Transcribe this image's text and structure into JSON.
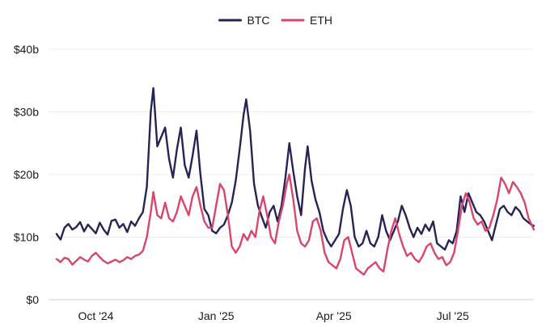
{
  "chart_data": {
    "type": "line",
    "title": "",
    "xlabel": "",
    "ylabel": "",
    "y_unit_prefix": "$",
    "y_unit_suffix": "b",
    "ylim": [
      0,
      40
    ],
    "y_ticks": [
      0,
      10,
      20,
      30,
      40
    ],
    "y_tick_labels": [
      "$0",
      "$10b",
      "$20b",
      "$30b",
      "$40b"
    ],
    "xlim": [
      "2024-09-01",
      "2025-09-01"
    ],
    "x_ticks": [
      {
        "date": "2024-10-01",
        "label": "Oct '24"
      },
      {
        "date": "2025-01-01",
        "label": "Jan '25"
      },
      {
        "date": "2025-04-01",
        "label": "Apr '25"
      },
      {
        "date": "2025-07-01",
        "label": "Jul '25"
      }
    ],
    "grid": "horizontal",
    "legend_position": "top-center",
    "series": [
      {
        "name": "BTC",
        "color": "#262456",
        "points": [
          [
            "2024-09-01",
            10.5
          ],
          [
            "2024-09-04",
            9.6
          ],
          [
            "2024-09-07",
            11.5
          ],
          [
            "2024-09-10",
            12.1
          ],
          [
            "2024-09-13",
            11.2
          ],
          [
            "2024-09-16",
            11.6
          ],
          [
            "2024-09-19",
            12.4
          ],
          [
            "2024-09-22",
            10.9
          ],
          [
            "2024-09-25",
            12.0
          ],
          [
            "2024-09-28",
            11.3
          ],
          [
            "2024-10-01",
            10.6
          ],
          [
            "2024-10-04",
            12.3
          ],
          [
            "2024-10-07",
            11.2
          ],
          [
            "2024-10-10",
            10.4
          ],
          [
            "2024-10-13",
            12.6
          ],
          [
            "2024-10-16",
            12.8
          ],
          [
            "2024-10-19",
            11.5
          ],
          [
            "2024-10-22",
            12.1
          ],
          [
            "2024-10-25",
            10.8
          ],
          [
            "2024-10-28",
            12.5
          ],
          [
            "2024-10-31",
            11.8
          ],
          [
            "2024-11-03",
            13.0
          ],
          [
            "2024-11-06",
            14.0
          ],
          [
            "2024-11-09",
            18.0
          ],
          [
            "2024-11-12",
            30.0
          ],
          [
            "2024-11-14",
            33.8
          ],
          [
            "2024-11-17",
            24.5
          ],
          [
            "2024-11-20",
            26.0
          ],
          [
            "2024-11-23",
            27.5
          ],
          [
            "2024-11-26",
            22.5
          ],
          [
            "2024-11-29",
            19.5
          ],
          [
            "2024-12-02",
            24.0
          ],
          [
            "2024-12-05",
            27.5
          ],
          [
            "2024-12-08",
            21.5
          ],
          [
            "2024-12-11",
            19.5
          ],
          [
            "2024-12-14",
            23.0
          ],
          [
            "2024-12-17",
            27.0
          ],
          [
            "2024-12-20",
            20.0
          ],
          [
            "2024-12-23",
            14.5
          ],
          [
            "2024-12-26",
            13.5
          ],
          [
            "2024-12-29",
            11.0
          ],
          [
            "2025-01-01",
            10.6
          ],
          [
            "2025-01-04",
            11.5
          ],
          [
            "2025-01-07",
            12.0
          ],
          [
            "2025-01-10",
            13.5
          ],
          [
            "2025-01-13",
            15.5
          ],
          [
            "2025-01-16",
            19.0
          ],
          [
            "2025-01-19",
            24.0
          ],
          [
            "2025-01-22",
            29.5
          ],
          [
            "2025-01-24",
            32.0
          ],
          [
            "2025-01-27",
            27.0
          ],
          [
            "2025-01-30",
            18.5
          ],
          [
            "2025-02-02",
            15.0
          ],
          [
            "2025-02-05",
            13.2
          ],
          [
            "2025-02-08",
            11.5
          ],
          [
            "2025-02-11",
            14.0
          ],
          [
            "2025-02-14",
            15.0
          ],
          [
            "2025-02-17",
            12.5
          ],
          [
            "2025-02-20",
            15.0
          ],
          [
            "2025-02-23",
            19.5
          ],
          [
            "2025-02-26",
            25.0
          ],
          [
            "2025-03-01",
            20.5
          ],
          [
            "2025-03-04",
            16.5
          ],
          [
            "2025-03-07",
            13.5
          ],
          [
            "2025-03-10",
            21.0
          ],
          [
            "2025-03-12",
            24.5
          ],
          [
            "2025-03-15",
            19.0
          ],
          [
            "2025-03-18",
            16.0
          ],
          [
            "2025-03-21",
            14.0
          ],
          [
            "2025-03-24",
            11.0
          ],
          [
            "2025-03-27",
            9.5
          ],
          [
            "2025-03-30",
            8.5
          ],
          [
            "2025-04-02",
            9.5
          ],
          [
            "2025-04-05",
            10.5
          ],
          [
            "2025-04-08",
            14.5
          ],
          [
            "2025-04-11",
            17.5
          ],
          [
            "2025-04-14",
            15.0
          ],
          [
            "2025-04-17",
            10.0
          ],
          [
            "2025-04-20",
            8.5
          ],
          [
            "2025-04-23",
            9.0
          ],
          [
            "2025-04-26",
            11.0
          ],
          [
            "2025-04-29",
            9.0
          ],
          [
            "2025-05-02",
            8.5
          ],
          [
            "2025-05-05",
            10.0
          ],
          [
            "2025-05-08",
            13.5
          ],
          [
            "2025-05-11",
            11.0
          ],
          [
            "2025-05-14",
            9.5
          ],
          [
            "2025-05-17",
            11.0
          ],
          [
            "2025-05-20",
            12.5
          ],
          [
            "2025-05-23",
            15.0
          ],
          [
            "2025-05-26",
            13.5
          ],
          [
            "2025-05-29",
            11.5
          ],
          [
            "2025-06-01",
            10.0
          ],
          [
            "2025-06-04",
            11.5
          ],
          [
            "2025-06-07",
            10.5
          ],
          [
            "2025-06-10",
            12.0
          ],
          [
            "2025-06-13",
            11.0
          ],
          [
            "2025-06-16",
            12.5
          ],
          [
            "2025-06-19",
            9.0
          ],
          [
            "2025-06-22",
            8.5
          ],
          [
            "2025-06-25",
            8.0
          ],
          [
            "2025-06-28",
            9.5
          ],
          [
            "2025-07-01",
            9.0
          ],
          [
            "2025-07-04",
            11.0
          ],
          [
            "2025-07-07",
            16.5
          ],
          [
            "2025-07-10",
            14.0
          ],
          [
            "2025-07-13",
            17.0
          ],
          [
            "2025-07-16",
            15.5
          ],
          [
            "2025-07-19",
            14.0
          ],
          [
            "2025-07-22",
            13.5
          ],
          [
            "2025-07-25",
            12.5
          ],
          [
            "2025-07-28",
            11.0
          ],
          [
            "2025-07-31",
            9.5
          ],
          [
            "2025-08-03",
            12.0
          ],
          [
            "2025-08-06",
            14.5
          ],
          [
            "2025-08-09",
            15.0
          ],
          [
            "2025-08-12",
            14.0
          ],
          [
            "2025-08-15",
            13.5
          ],
          [
            "2025-08-18",
            14.8
          ],
          [
            "2025-08-21",
            14.2
          ],
          [
            "2025-08-24",
            13.0
          ],
          [
            "2025-08-27",
            12.5
          ],
          [
            "2025-08-30",
            12.0
          ],
          [
            "2025-09-01",
            11.8
          ]
        ]
      },
      {
        "name": "ETH",
        "color": "#d9466b",
        "points": [
          [
            "2024-09-01",
            6.5
          ],
          [
            "2024-09-04",
            6.0
          ],
          [
            "2024-09-07",
            6.7
          ],
          [
            "2024-09-10",
            6.5
          ],
          [
            "2024-09-13",
            5.6
          ],
          [
            "2024-09-16",
            6.2
          ],
          [
            "2024-09-19",
            6.8
          ],
          [
            "2024-09-22",
            6.4
          ],
          [
            "2024-09-25",
            6.1
          ],
          [
            "2024-09-28",
            7.0
          ],
          [
            "2024-10-01",
            7.5
          ],
          [
            "2024-10-04",
            6.8
          ],
          [
            "2024-10-07",
            6.2
          ],
          [
            "2024-10-10",
            5.8
          ],
          [
            "2024-10-13",
            6.1
          ],
          [
            "2024-10-16",
            6.4
          ],
          [
            "2024-10-19",
            6.0
          ],
          [
            "2024-10-22",
            6.3
          ],
          [
            "2024-10-25",
            6.8
          ],
          [
            "2024-10-28",
            6.5
          ],
          [
            "2024-10-31",
            7.0
          ],
          [
            "2024-11-03",
            7.2
          ],
          [
            "2024-11-06",
            7.8
          ],
          [
            "2024-11-09",
            10.0
          ],
          [
            "2024-11-12",
            14.0
          ],
          [
            "2024-11-14",
            17.2
          ],
          [
            "2024-11-17",
            13.5
          ],
          [
            "2024-11-20",
            13.0
          ],
          [
            "2024-11-23",
            15.5
          ],
          [
            "2024-11-26",
            13.0
          ],
          [
            "2024-11-29",
            12.5
          ],
          [
            "2024-12-02",
            14.0
          ],
          [
            "2024-12-05",
            16.5
          ],
          [
            "2024-12-08",
            15.0
          ],
          [
            "2024-12-11",
            13.5
          ],
          [
            "2024-12-14",
            16.5
          ],
          [
            "2024-12-17",
            18.0
          ],
          [
            "2024-12-20",
            15.0
          ],
          [
            "2024-12-23",
            12.5
          ],
          [
            "2024-12-26",
            11.5
          ],
          [
            "2024-12-29",
            11.5
          ],
          [
            "2025-01-01",
            15.0
          ],
          [
            "2025-01-04",
            18.5
          ],
          [
            "2025-01-07",
            17.5
          ],
          [
            "2025-01-10",
            13.5
          ],
          [
            "2025-01-13",
            8.5
          ],
          [
            "2025-01-16",
            7.5
          ],
          [
            "2025-01-19",
            8.5
          ],
          [
            "2025-01-22",
            10.5
          ],
          [
            "2025-01-25",
            9.5
          ],
          [
            "2025-01-28",
            11.0
          ],
          [
            "2025-01-31",
            10.0
          ],
          [
            "2025-02-03",
            14.0
          ],
          [
            "2025-02-06",
            16.5
          ],
          [
            "2025-02-09",
            13.5
          ],
          [
            "2025-02-12",
            10.0
          ],
          [
            "2025-02-15",
            9.0
          ],
          [
            "2025-02-18",
            12.5
          ],
          [
            "2025-02-21",
            15.0
          ],
          [
            "2025-02-24",
            18.5
          ],
          [
            "2025-02-26",
            20.0
          ],
          [
            "2025-03-01",
            16.0
          ],
          [
            "2025-03-04",
            11.0
          ],
          [
            "2025-03-07",
            9.0
          ],
          [
            "2025-03-10",
            8.5
          ],
          [
            "2025-03-13",
            9.5
          ],
          [
            "2025-03-16",
            12.5
          ],
          [
            "2025-03-19",
            13.0
          ],
          [
            "2025-03-22",
            11.0
          ],
          [
            "2025-03-25",
            7.5
          ],
          [
            "2025-03-28",
            6.0
          ],
          [
            "2025-03-31",
            5.5
          ],
          [
            "2025-04-03",
            5.0
          ],
          [
            "2025-04-06",
            6.5
          ],
          [
            "2025-04-09",
            9.5
          ],
          [
            "2025-04-12",
            10.0
          ],
          [
            "2025-04-15",
            7.5
          ],
          [
            "2025-04-18",
            5.0
          ],
          [
            "2025-04-21",
            4.5
          ],
          [
            "2025-04-24",
            4.0
          ],
          [
            "2025-04-27",
            5.0
          ],
          [
            "2025-04-30",
            5.5
          ],
          [
            "2025-05-03",
            6.0
          ],
          [
            "2025-05-06",
            5.0
          ],
          [
            "2025-05-09",
            4.5
          ],
          [
            "2025-05-12",
            8.0
          ],
          [
            "2025-05-15",
            11.0
          ],
          [
            "2025-05-18",
            13.0
          ],
          [
            "2025-05-21",
            10.5
          ],
          [
            "2025-05-24",
            8.5
          ],
          [
            "2025-05-27",
            7.0
          ],
          [
            "2025-05-30",
            7.5
          ],
          [
            "2025-06-02",
            6.5
          ],
          [
            "2025-06-05",
            6.0
          ],
          [
            "2025-06-08",
            7.0
          ],
          [
            "2025-06-11",
            8.5
          ],
          [
            "2025-06-14",
            9.0
          ],
          [
            "2025-06-17",
            7.5
          ],
          [
            "2025-06-20",
            6.5
          ],
          [
            "2025-06-23",
            6.8
          ],
          [
            "2025-06-26",
            5.5
          ],
          [
            "2025-06-29",
            6.0
          ],
          [
            "2025-07-02",
            7.5
          ],
          [
            "2025-07-05",
            11.0
          ],
          [
            "2025-07-08",
            15.0
          ],
          [
            "2025-07-11",
            17.0
          ],
          [
            "2025-07-14",
            15.5
          ],
          [
            "2025-07-17",
            13.0
          ],
          [
            "2025-07-20",
            12.0
          ],
          [
            "2025-07-23",
            12.5
          ],
          [
            "2025-07-26",
            11.0
          ],
          [
            "2025-07-29",
            11.5
          ],
          [
            "2025-08-01",
            13.5
          ],
          [
            "2025-08-04",
            16.0
          ],
          [
            "2025-08-07",
            19.5
          ],
          [
            "2025-08-10",
            18.5
          ],
          [
            "2025-08-13",
            17.0
          ],
          [
            "2025-08-16",
            18.8
          ],
          [
            "2025-08-19",
            18.0
          ],
          [
            "2025-08-22",
            17.0
          ],
          [
            "2025-08-25",
            15.5
          ],
          [
            "2025-08-28",
            13.0
          ],
          [
            "2025-09-01",
            11.2
          ]
        ]
      }
    ]
  }
}
